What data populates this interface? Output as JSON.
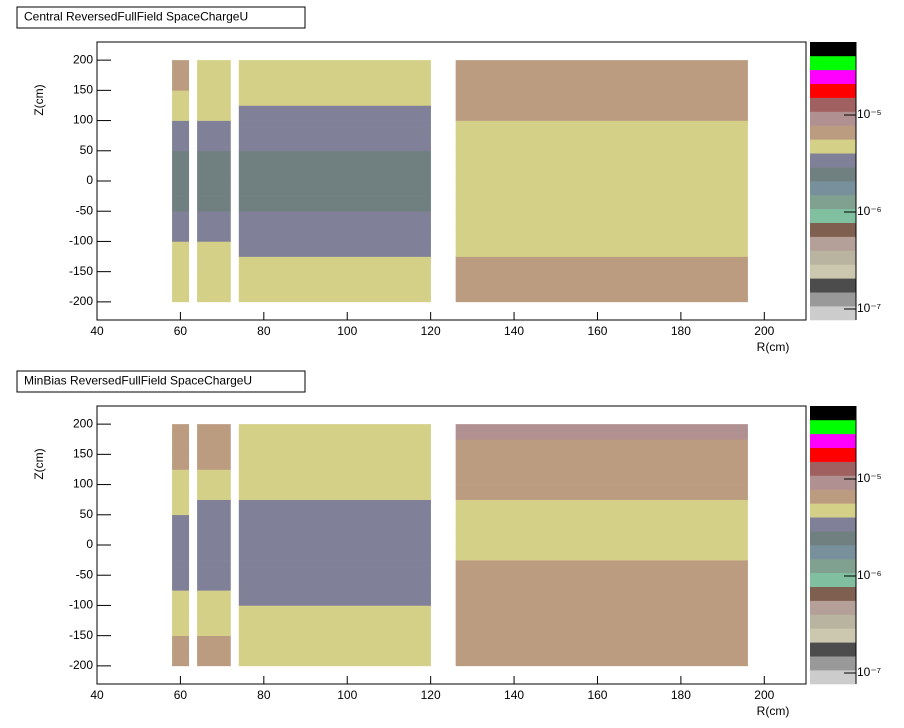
{
  "chart_data": [
    {
      "type": "heatmap",
      "title": "Central ReversedFullField SpaceChargeU",
      "x_label": "R(cm)",
      "y_label": "Z(cm)",
      "xbins": [
        58,
        62,
        64,
        72,
        74,
        120,
        126,
        196
      ],
      "ybins": [
        -200,
        -175,
        -150,
        -125,
        -100,
        -75,
        -50,
        -25,
        0,
        25,
        50,
        75,
        100,
        125,
        150,
        175,
        200
      ],
      "values": [
        [
          4.8e-06,
          null,
          4.8e-06,
          null,
          4.8e-06,
          null,
          6.6e-06
        ],
        [
          4.8e-06,
          null,
          4.8e-06,
          null,
          4.8e-06,
          null,
          6.6e-06
        ],
        [
          4.8e-06,
          null,
          4.8e-06,
          null,
          4.8e-06,
          null,
          6.6e-06
        ],
        [
          4.8e-06,
          null,
          4.8e-06,
          null,
          3.4e-06,
          null,
          4.8e-06
        ],
        [
          3.4e-06,
          null,
          3.4e-06,
          null,
          3.4e-06,
          null,
          4.8e-06
        ],
        [
          3.4e-06,
          null,
          3.4e-06,
          null,
          3.4e-06,
          null,
          4.8e-06
        ],
        [
          2.45e-06,
          null,
          2.45e-06,
          null,
          2.45e-06,
          null,
          4.8e-06
        ],
        [
          2.45e-06,
          null,
          2.45e-06,
          null,
          2.45e-06,
          null,
          4.8e-06
        ],
        [
          2.45e-06,
          null,
          2.45e-06,
          null,
          2.45e-06,
          null,
          4.8e-06
        ],
        [
          2.45e-06,
          null,
          2.45e-06,
          null,
          2.45e-06,
          null,
          4.8e-06
        ],
        [
          3.4e-06,
          null,
          3.4e-06,
          null,
          3.4e-06,
          null,
          4.8e-06
        ],
        [
          3.4e-06,
          null,
          3.4e-06,
          null,
          3.4e-06,
          null,
          4.8e-06
        ],
        [
          4.8e-06,
          null,
          4.8e-06,
          null,
          3.4e-06,
          null,
          6.6e-06
        ],
        [
          4.8e-06,
          null,
          4.8e-06,
          null,
          4.8e-06,
          null,
          6.6e-06
        ],
        [
          6.6e-06,
          null,
          4.8e-06,
          null,
          4.8e-06,
          null,
          6.6e-06
        ],
        [
          6.6e-06,
          null,
          4.8e-06,
          null,
          4.8e-06,
          null,
          6.6e-06
        ]
      ],
      "xlim": [
        40,
        210
      ],
      "xticks": [
        40,
        60,
        80,
        100,
        120,
        140,
        160,
        180,
        200
      ],
      "ylim": [
        -230,
        230
      ],
      "yticks": [
        -200,
        -150,
        -100,
        -50,
        0,
        50,
        100,
        150,
        200
      ],
      "log_z": true,
      "zlim": [
        7.7e-08,
        5.66e-05
      ],
      "zticks": [
        {
          "value": 1e-07,
          "label": "10⁻⁷"
        },
        {
          "value": 1e-06,
          "label": "10⁻⁶"
        },
        {
          "value": 1e-05,
          "label": "10⁻⁵"
        }
      ],
      "colors": [
        "#cccccc",
        "#999999",
        "#4c4c4c",
        "#ccc8b0",
        "#b8b4a0",
        "#b4a098",
        "#7f5f4f",
        "#80c0a0",
        "#80a090",
        "#78909c",
        "#708080",
        "#808098",
        "#d4d088",
        "#bc9c80",
        "#b09090",
        "#a06060",
        "#ff0000",
        "#ff00ff",
        "#00ff00",
        "#000000"
      ]
    },
    {
      "type": "heatmap",
      "title": "MinBias ReversedFullField SpaceChargeU",
      "x_label": "R(cm)",
      "y_label": "Z(cm)",
      "xbins": [
        58,
        62,
        64,
        72,
        74,
        120,
        126,
        196
      ],
      "ybins": [
        -200,
        -175,
        -150,
        -125,
        -100,
        -75,
        -50,
        -25,
        0,
        25,
        50,
        75,
        100,
        125,
        150,
        175,
        200
      ],
      "values": [
        [
          6.6e-06,
          null,
          6.6e-06,
          null,
          4.8e-06,
          null,
          6.6e-06
        ],
        [
          6.6e-06,
          null,
          6.6e-06,
          null,
          4.8e-06,
          null,
          6.6e-06
        ],
        [
          4.8e-06,
          null,
          4.8e-06,
          null,
          4.8e-06,
          null,
          6.6e-06
        ],
        [
          4.8e-06,
          null,
          4.8e-06,
          null,
          4.8e-06,
          null,
          6.6e-06
        ],
        [
          4.8e-06,
          null,
          4.8e-06,
          null,
          3.4e-06,
          null,
          6.6e-06
        ],
        [
          3.4e-06,
          null,
          3.4e-06,
          null,
          3.4e-06,
          null,
          6.6e-06
        ],
        [
          3.4e-06,
          null,
          3.4e-06,
          null,
          3.4e-06,
          null,
          6.6e-06
        ],
        [
          3.4e-06,
          null,
          3.4e-06,
          null,
          3.4e-06,
          null,
          4.8e-06
        ],
        [
          3.4e-06,
          null,
          3.4e-06,
          null,
          3.4e-06,
          null,
          4.8e-06
        ],
        [
          3.4e-06,
          null,
          3.4e-06,
          null,
          3.4e-06,
          null,
          4.8e-06
        ],
        [
          4.8e-06,
          null,
          3.4e-06,
          null,
          3.4e-06,
          null,
          4.8e-06
        ],
        [
          4.8e-06,
          null,
          4.8e-06,
          null,
          4.8e-06,
          null,
          6.6e-06
        ],
        [
          4.8e-06,
          null,
          4.8e-06,
          null,
          4.8e-06,
          null,
          6.6e-06
        ],
        [
          6.6e-06,
          null,
          6.6e-06,
          null,
          4.8e-06,
          null,
          6.6e-06
        ],
        [
          6.6e-06,
          null,
          6.6e-06,
          null,
          4.8e-06,
          null,
          6.6e-06
        ],
        [
          6.6e-06,
          null,
          6.6e-06,
          null,
          4.8e-06,
          null,
          9.2e-06
        ]
      ],
      "xlim": [
        40,
        210
      ],
      "xticks": [
        40,
        60,
        80,
        100,
        120,
        140,
        160,
        180,
        200
      ],
      "ylim": [
        -230,
        230
      ],
      "yticks": [
        -200,
        -150,
        -100,
        -50,
        0,
        50,
        100,
        150,
        200
      ],
      "log_z": true,
      "zlim": [
        7.7e-08,
        5.66e-05
      ],
      "zticks": [
        {
          "value": 1e-07,
          "label": "10⁻⁷"
        },
        {
          "value": 1e-06,
          "label": "10⁻⁶"
        },
        {
          "value": 1e-05,
          "label": "10⁻⁵"
        }
      ],
      "colors": [
        "#cccccc",
        "#999999",
        "#4c4c4c",
        "#ccc8b0",
        "#b8b4a0",
        "#b4a098",
        "#7f5f4f",
        "#80c0a0",
        "#80a090",
        "#78909c",
        "#708080",
        "#808098",
        "#d4d088",
        "#bc9c80",
        "#b09090",
        "#a06060",
        "#ff0000",
        "#ff00ff",
        "#00ff00",
        "#000000"
      ]
    }
  ]
}
